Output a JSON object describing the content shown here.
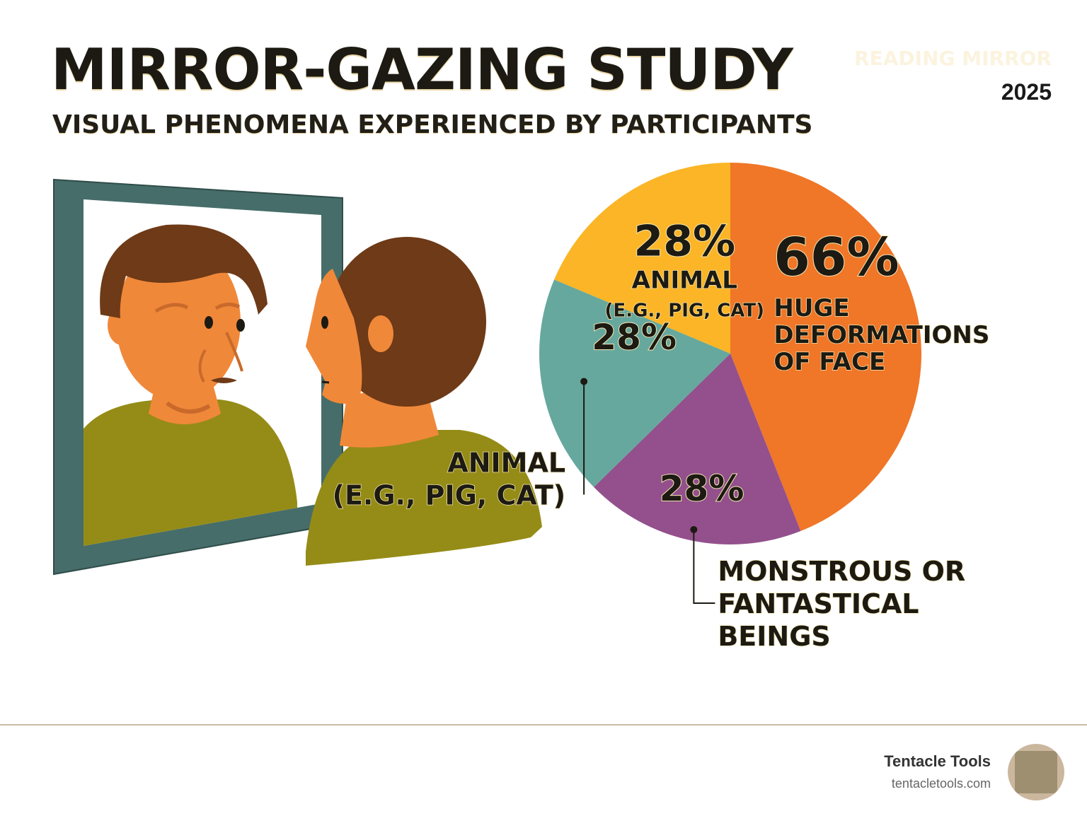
{
  "header": {
    "title": "MIRROR-GAZING STUDY",
    "subtitle": "VISUAL PHENOMENA EXPERIENCED BY PARTICIPANTS",
    "watermark": "READING MIRROR",
    "year": "2025"
  },
  "chart_data": {
    "type": "pie",
    "title": "",
    "slices": [
      {
        "label_lines": [
          "HUGE",
          "DEFORMATIONS",
          "OF FACE"
        ],
        "value_label": "66%",
        "value": 66,
        "color": "#f07628"
      },
      {
        "label_lines": [
          "MONSTROUS OR",
          "FANTASTICAL",
          "BEINGS"
        ],
        "value_label": "28%",
        "value": 28,
        "color": "#93508c"
      },
      {
        "label_lines": [
          "ANIMAL",
          "(E.G., PIG, CAT)"
        ],
        "value_label": "28%",
        "value": 28,
        "color": "#66a89e"
      },
      {
        "label_lines": [
          "ANIMAL",
          "(E.G., PIG, CAT)"
        ],
        "value_label": "28%",
        "value": 28,
        "color": "#fbb526"
      }
    ]
  },
  "footer": {
    "brand_name": "Tentacle Tools",
    "brand_url": "tentacletools.com",
    "logo_text": "Tentacle Tools"
  },
  "colors": {
    "skin": "#f0883a",
    "hair": "#6e3a17",
    "shirt": "#958c17",
    "mirror_frame": "#466d69",
    "text": "#1c1a12",
    "outline": "#f6e7b4"
  }
}
